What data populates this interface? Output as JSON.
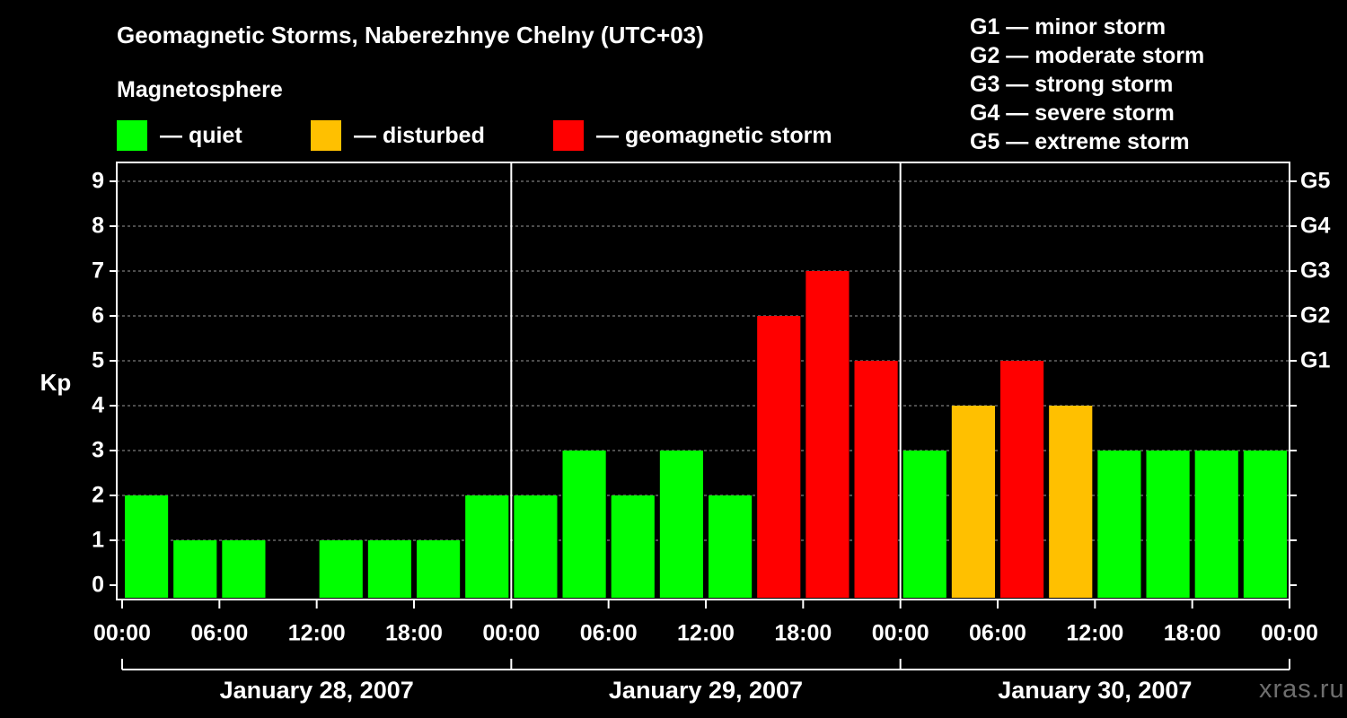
{
  "title": "Geomagnetic Storms, Naberezhnye Chelny (UTC+03)",
  "subtitle": "Magnetosphere",
  "legend": [
    {
      "label": "— quiet",
      "color": "#00ff00"
    },
    {
      "label": "— disturbed",
      "color": "#ffc000"
    },
    {
      "label": "— geomagnetic storm",
      "color": "#ff0000"
    }
  ],
  "storm_scale": [
    "G1 — minor storm",
    "G2 — moderate storm",
    "G3 — strong storm",
    "G4 — severe storm",
    "G5 — extreme storm"
  ],
  "watermark": "xras.ru",
  "chart_data": {
    "type": "bar",
    "ylabel": "Kp",
    "ylim": [
      0,
      9
    ],
    "y_ticks": [
      0,
      1,
      2,
      3,
      4,
      5,
      6,
      7,
      8,
      9
    ],
    "right_axis_labels": [
      {
        "kp": 5,
        "label": "G1"
      },
      {
        "kp": 6,
        "label": "G2"
      },
      {
        "kp": 7,
        "label": "G3"
      },
      {
        "kp": 8,
        "label": "G4"
      },
      {
        "kp": 9,
        "label": "G5"
      }
    ],
    "x_tick_labels": [
      "00:00",
      "06:00",
      "12:00",
      "18:00",
      "00:00",
      "06:00",
      "12:00",
      "18:00",
      "00:00",
      "06:00",
      "12:00",
      "18:00",
      "00:00"
    ],
    "days": [
      "January 28, 2007",
      "January 29, 2007",
      "January 30, 2007"
    ],
    "interval_hours": 3,
    "values": [
      2,
      1,
      1,
      0,
      1,
      1,
      1,
      2,
      2,
      3,
      2,
      3,
      2,
      6,
      7,
      5,
      3,
      4,
      5,
      4,
      3,
      3,
      3,
      3
    ],
    "colors": {
      "quiet": "#00ff00",
      "disturbed": "#ffc000",
      "storm": "#ff0000"
    },
    "grid": true
  }
}
